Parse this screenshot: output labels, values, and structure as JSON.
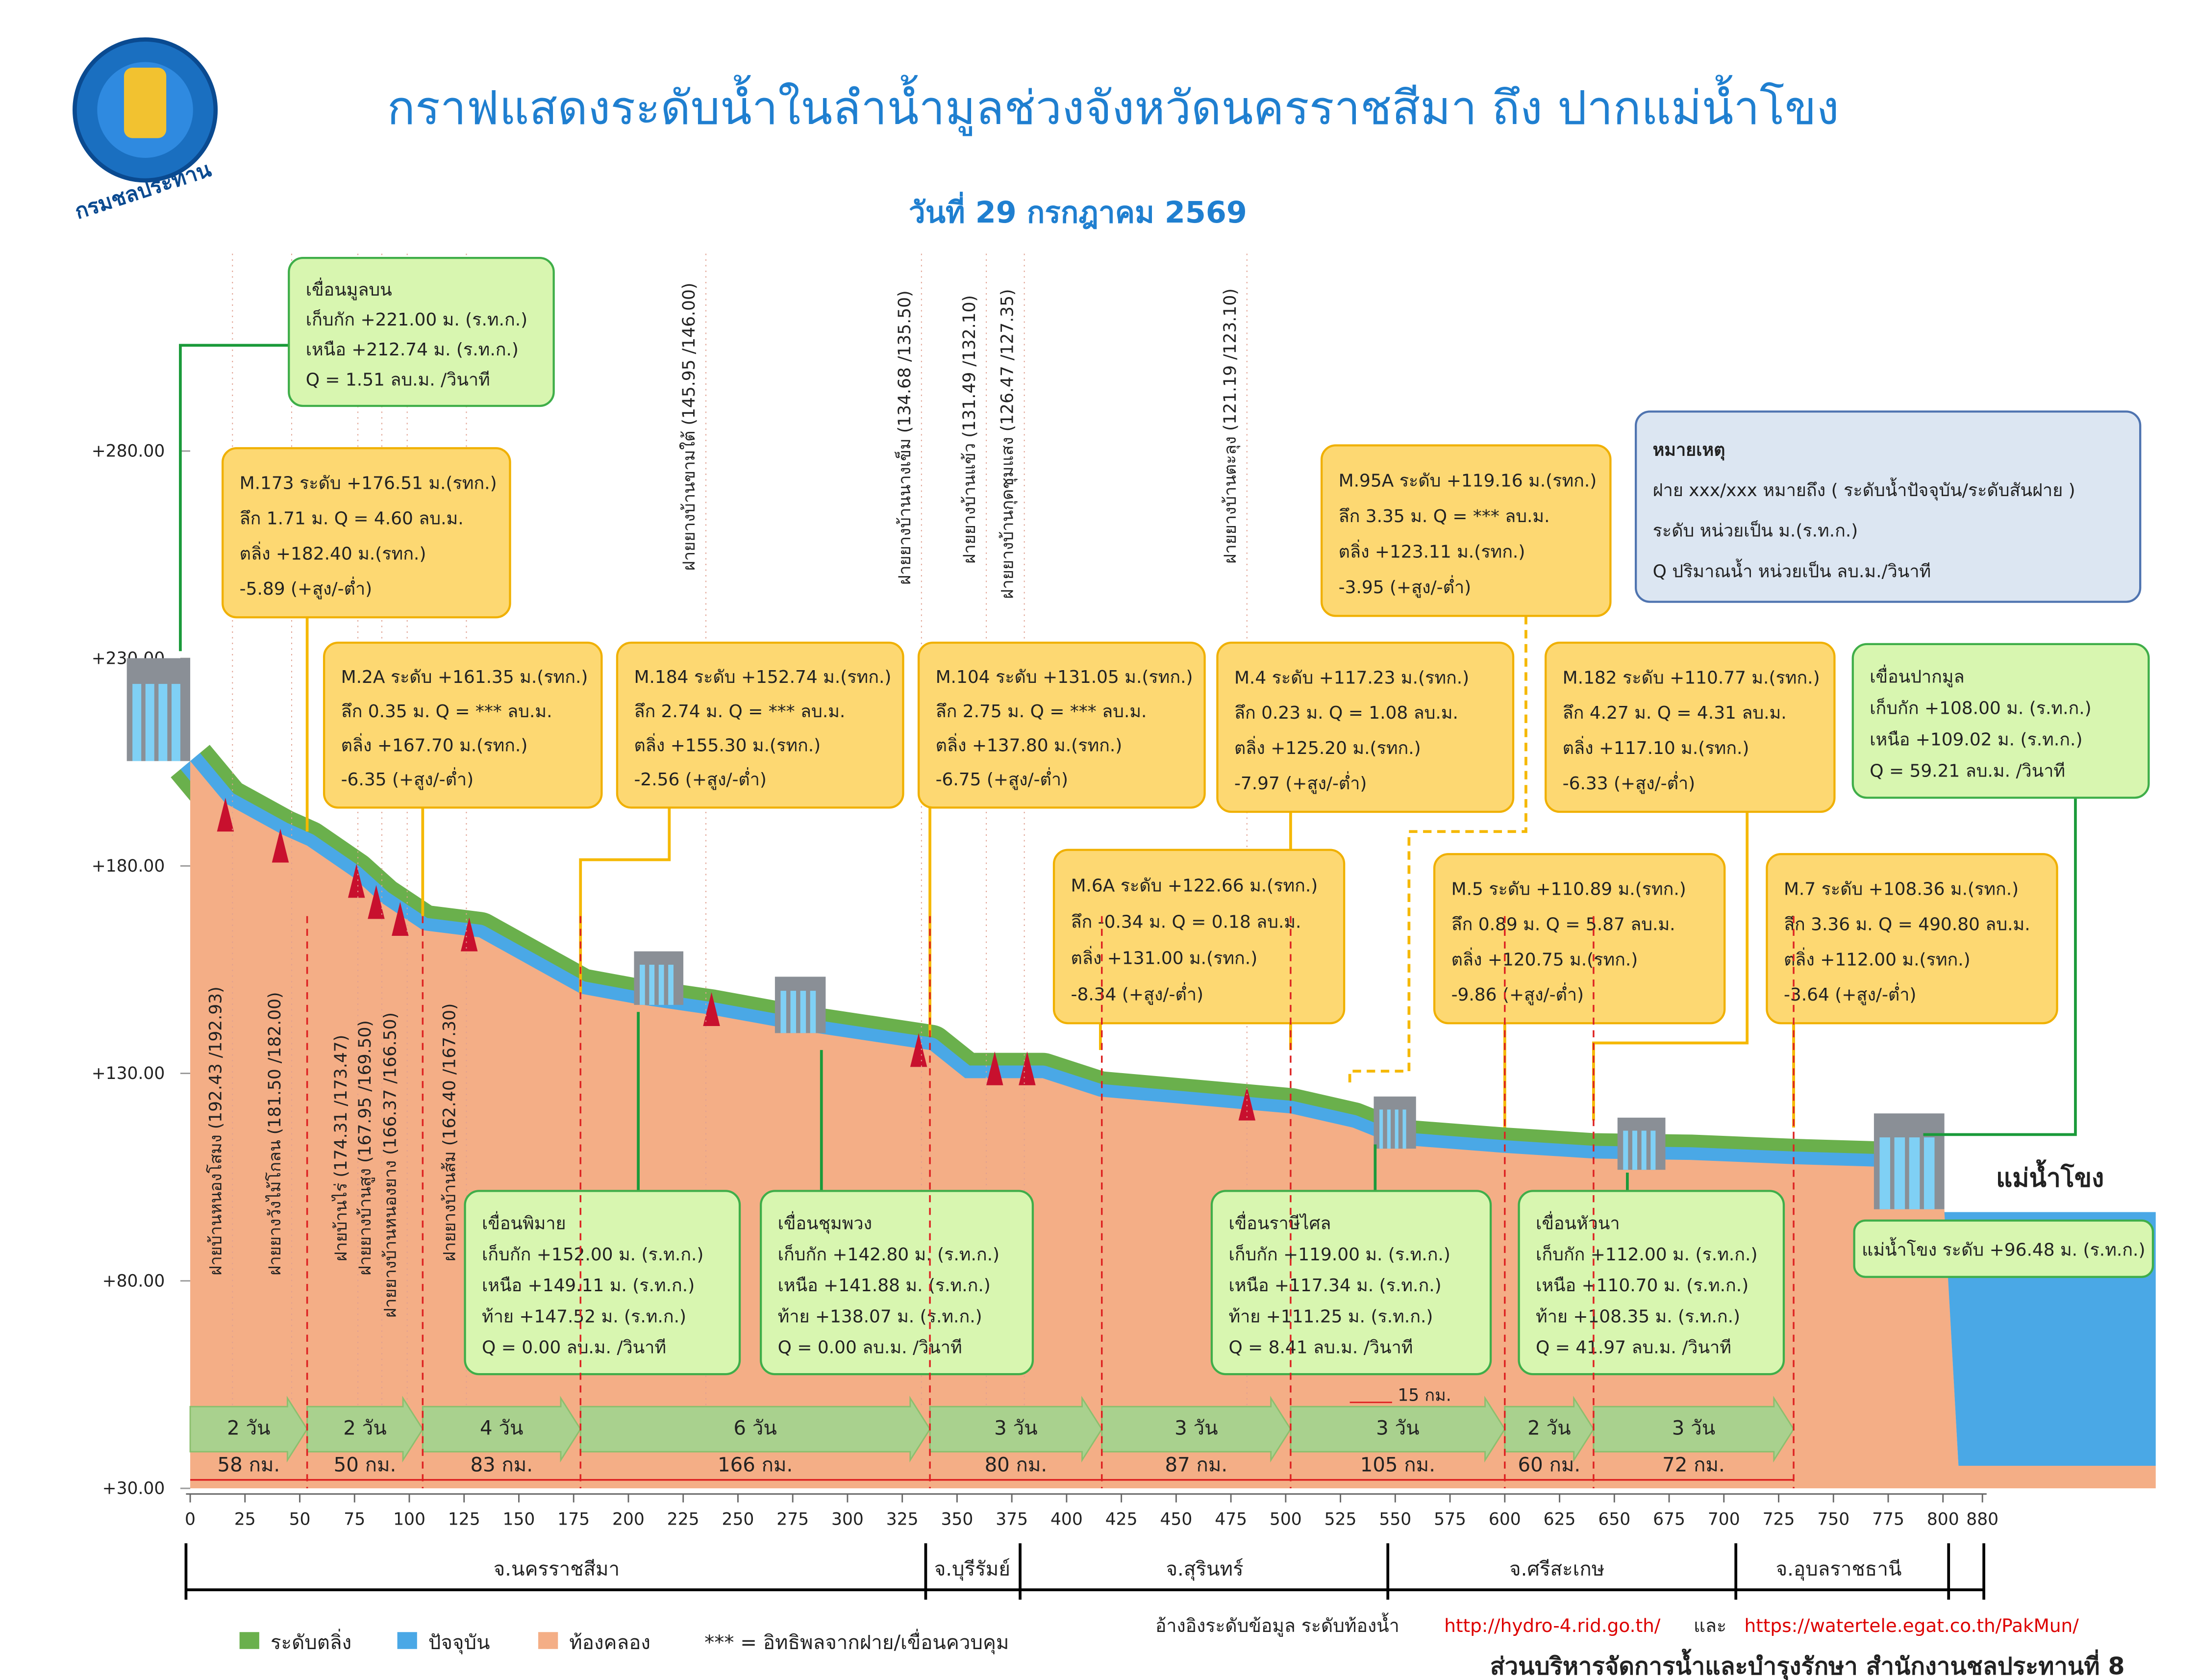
{
  "header": {
    "title": "กราฟแสดงระดับน้ำในลำน้ำมูลช่วงจังหวัดนครราชสีมา ถึง ปากแม่น้ำโขง",
    "date": "วันที่ 29 กรกฎาคม 2569",
    "logo_text": "กรมชลประทาน"
  },
  "axis": {
    "yticks": [
      {
        "value": 280,
        "label": "+280.00"
      },
      {
        "value": 230,
        "label": "+230.00"
      },
      {
        "value": 180,
        "label": "+180.00"
      },
      {
        "value": 130,
        "label": "+130.00"
      },
      {
        "value": 80,
        "label": "+80.00"
      },
      {
        "value": 30,
        "label": "+30.00"
      }
    ],
    "xticks": [
      0,
      25,
      50,
      75,
      100,
      125,
      150,
      175,
      200,
      225,
      250,
      275,
      300,
      325,
      350,
      375,
      400,
      425,
      450,
      475,
      500,
      525,
      550,
      575,
      600,
      625,
      650,
      675,
      700,
      725,
      750,
      775,
      800,
      880
    ]
  },
  "dams": [
    {
      "lines": [
        "เขื่อนมูลบน",
        "เก็บกัก +221.00 ม. (ร.ท.ก.)",
        "เหนือ +212.74 ม. (ร.ท.ก.)",
        "Q = 1.51 ลบ.ม. /วินาที"
      ]
    },
    {
      "lines": [
        "เขื่อนปากมูล",
        "เก็บกัก +108.00 ม. (ร.ท.ก.)",
        "เหนือ +109.02 ม. (ร.ท.ก.)",
        "Q = 59.21 ลบ.ม. /วินาที"
      ]
    },
    {
      "lines": [
        "เขื่อนพิมาย",
        "เก็บกัก +152.00 ม. (ร.ท.ก.)",
        "เหนือ +149.11 ม. (ร.ท.ก.)",
        "ท้าย +147.52 ม. (ร.ท.ก.)",
        "Q = 0.00 ลบ.ม. /วินาที"
      ]
    },
    {
      "lines": [
        "เขื่อนชุมพวง",
        "เก็บกัก +142.80 ม. (ร.ท.ก.)",
        "เหนือ +141.88 ม. (ร.ท.ก.)",
        "ท้าย +138.07 ม. (ร.ท.ก.)",
        "Q = 0.00 ลบ.ม. /วินาที"
      ]
    },
    {
      "lines": [
        "เขื่อนราษีไศล",
        "เก็บกัก +119.00 ม. (ร.ท.ก.)",
        "เหนือ +117.34 ม. (ร.ท.ก.)",
        "ท้าย +111.25 ม. (ร.ท.ก.)",
        "Q = 8.41 ลบ.ม. /วินาที"
      ]
    },
    {
      "lines": [
        "เขื่อนหัวนา",
        "เก็บกัก +112.00 ม. (ร.ท.ก.)",
        "เหนือ +110.70 ม. (ร.ท.ก.)",
        "ท้าย +108.35 ม. (ร.ท.ก.)",
        "Q = 41.97 ลบ.ม. /วินาที"
      ]
    }
  ],
  "stations": [
    {
      "lines": [
        "M.173  ระดับ +176.51 ม.(รทก.)",
        "ลึก 1.71 ม. Q = 4.60 ลบ.ม.",
        "ตลิ่ง +182.40 ม.(รทก.)",
        "-5.89 (+สูง/-ต่ำ)"
      ]
    },
    {
      "lines": [
        "M.2A  ระดับ +161.35 ม.(รทก.)",
        "ลึก 0.35 ม. Q = *** ลบ.ม.",
        "ตลิ่ง +167.70 ม.(รทก.)",
        "-6.35 (+สูง/-ต่ำ)"
      ]
    },
    {
      "lines": [
        "M.184  ระดับ +152.74 ม.(รทก.)",
        "ลึก 2.74 ม. Q = *** ลบ.ม.",
        "ตลิ่ง +155.30 ม.(รทก.)",
        "-2.56 (+สูง/-ต่ำ)"
      ]
    },
    {
      "lines": [
        "M.104  ระดับ +131.05 ม.(รทก.)",
        "ลึก 2.75 ม. Q = *** ลบ.ม.",
        "ตลิ่ง +137.80 ม.(รทก.)",
        "-6.75 (+สูง/-ต่ำ)"
      ]
    },
    {
      "lines": [
        "M.4  ระดับ +117.23 ม.(รทก.)",
        "ลึก 0.23 ม. Q = 1.08 ลบ.ม.",
        "ตลิ่ง +125.20 ม.(รทก.)",
        "-7.97 (+สูง/-ต่ำ)"
      ]
    },
    {
      "lines": [
        "M.95A ระดับ +119.16 ม.(รทก.)",
        "ลึก 3.35 ม. Q = *** ลบ.ม.",
        "ตลิ่ง +123.11 ม.(รทก.)",
        "-3.95 (+สูง/-ต่ำ)"
      ]
    },
    {
      "lines": [
        "M.182  ระดับ +110.77 ม.(รทก.)",
        "ลึก 4.27 ม. Q = 4.31 ลบ.ม.",
        "ตลิ่ง +117.10 ม.(รทก.)",
        "-6.33 (+สูง/-ต่ำ)"
      ]
    },
    {
      "lines": [
        "M.6A  ระดับ +122.66 ม.(รทก.)",
        "ลึก -0.34 ม. Q = 0.18 ลบ.ม.",
        "ตลิ่ง +131.00 ม.(รทก.)",
        "-8.34 (+สูง/-ต่ำ)"
      ]
    },
    {
      "lines": [
        "M.5  ระดับ +110.89 ม.(รทก.)",
        "ลึก 0.89 ม. Q = 5.87 ลบ.ม.",
        "ตลิ่ง +120.75 ม.(รทก.)",
        "-9.86 (+สูง/-ต่ำ)"
      ]
    },
    {
      "lines": [
        "M.7  ระดับ +108.36 ม.(รทก.)",
        "ลึก 3.36 ม. Q = 490.80 ลบ.ม.",
        "ตลิ่ง +112.00 ม.(รทก.)",
        "-3.64 (+สูง/-ต่ำ)"
      ]
    }
  ],
  "note": {
    "lines": [
      "หมายเหตุ",
      "ฝาย xxx/xxx หมายถึง ( ระดับน้ำปัจจุบัน/ระดับสันฝาย )",
      "ระดับ หน่วยเป็น ม.(ร.ท.ก.)",
      "Q ปริมาณน้ำ หน่วยเป็น ลบ.ม./วินาที"
    ]
  },
  "mekong": {
    "label": "แม่น้ำโขง",
    "level": "แม่น้ำโขง ระดับ +96.48 ม. (ร.ท.ก.)"
  },
  "weirs": [
    "ฝายบ้านหนองโสมง (192.43 /192.93)",
    "ฝายยางวังไม้โกลน (181.50 /182.00)",
    "ฝายบ้านไร่ (174.31 /173.47)",
    "ฝายยางบ้านสูง (167.95 /169.50)",
    "ฝายยางบ้านหนองยาง (166.37 /166.50)",
    "ฝายยางบ้านส้ม (162.40 /167.30)",
    "ฝายยางบ้านขามใต้ (145.95 /146.00)",
    "ฝายยางบ้านนางเข็ม (134.68 /135.50)",
    "ฝายยางบ้านแข้ว (131.49 /132.10)",
    "ฝายยางบ้านกุดชุมแสง (126.47 /127.35)",
    "ฝายยางบ้านตะลุง (121.19 /123.10)"
  ],
  "segments": [
    {
      "days": "2 วัน",
      "km": "58 กม."
    },
    {
      "days": "2 วัน",
      "km": "50 กม."
    },
    {
      "days": "4 วัน",
      "km": "83 กม."
    },
    {
      "days": "6 วัน",
      "km": "166 กม."
    },
    {
      "days": "3 วัน",
      "km": "80 กม."
    },
    {
      "days": "3 วัน",
      "km": "87 กม."
    },
    {
      "days": "3 วัน",
      "km": "105 กม."
    },
    {
      "days": "2 วัน",
      "km": "60 กม."
    },
    {
      "days": "3 วัน",
      "km": "72 กม."
    }
  ],
  "extra_distance": "15 กม.",
  "provinces": [
    "จ.นครราชสีมา",
    "จ.บุรีรัมย์",
    "จ.สุรินทร์",
    "จ.ศรีสะเกษ",
    "จ.อุบลราชธานี"
  ],
  "legend": [
    "ระดับตลิ่ง",
    "ปัจจุบัน",
    "ท้องคลอง",
    "*** = อิทธิพลจากฝาย/เขื่อนควบคุม"
  ],
  "reference": {
    "text": "อ้างอิงระดับข้อมูล ระดับท้องน้ำ",
    "link1": "http://hydro-4.rid.go.th/",
    "and": "และ",
    "link2": "https://watertele.egat.co.th/PakMun/"
  },
  "footer": "ส่วนบริหารจัดการน้ำและบำรุงรักษา สำนักงานชลประทานที่ 8"
}
